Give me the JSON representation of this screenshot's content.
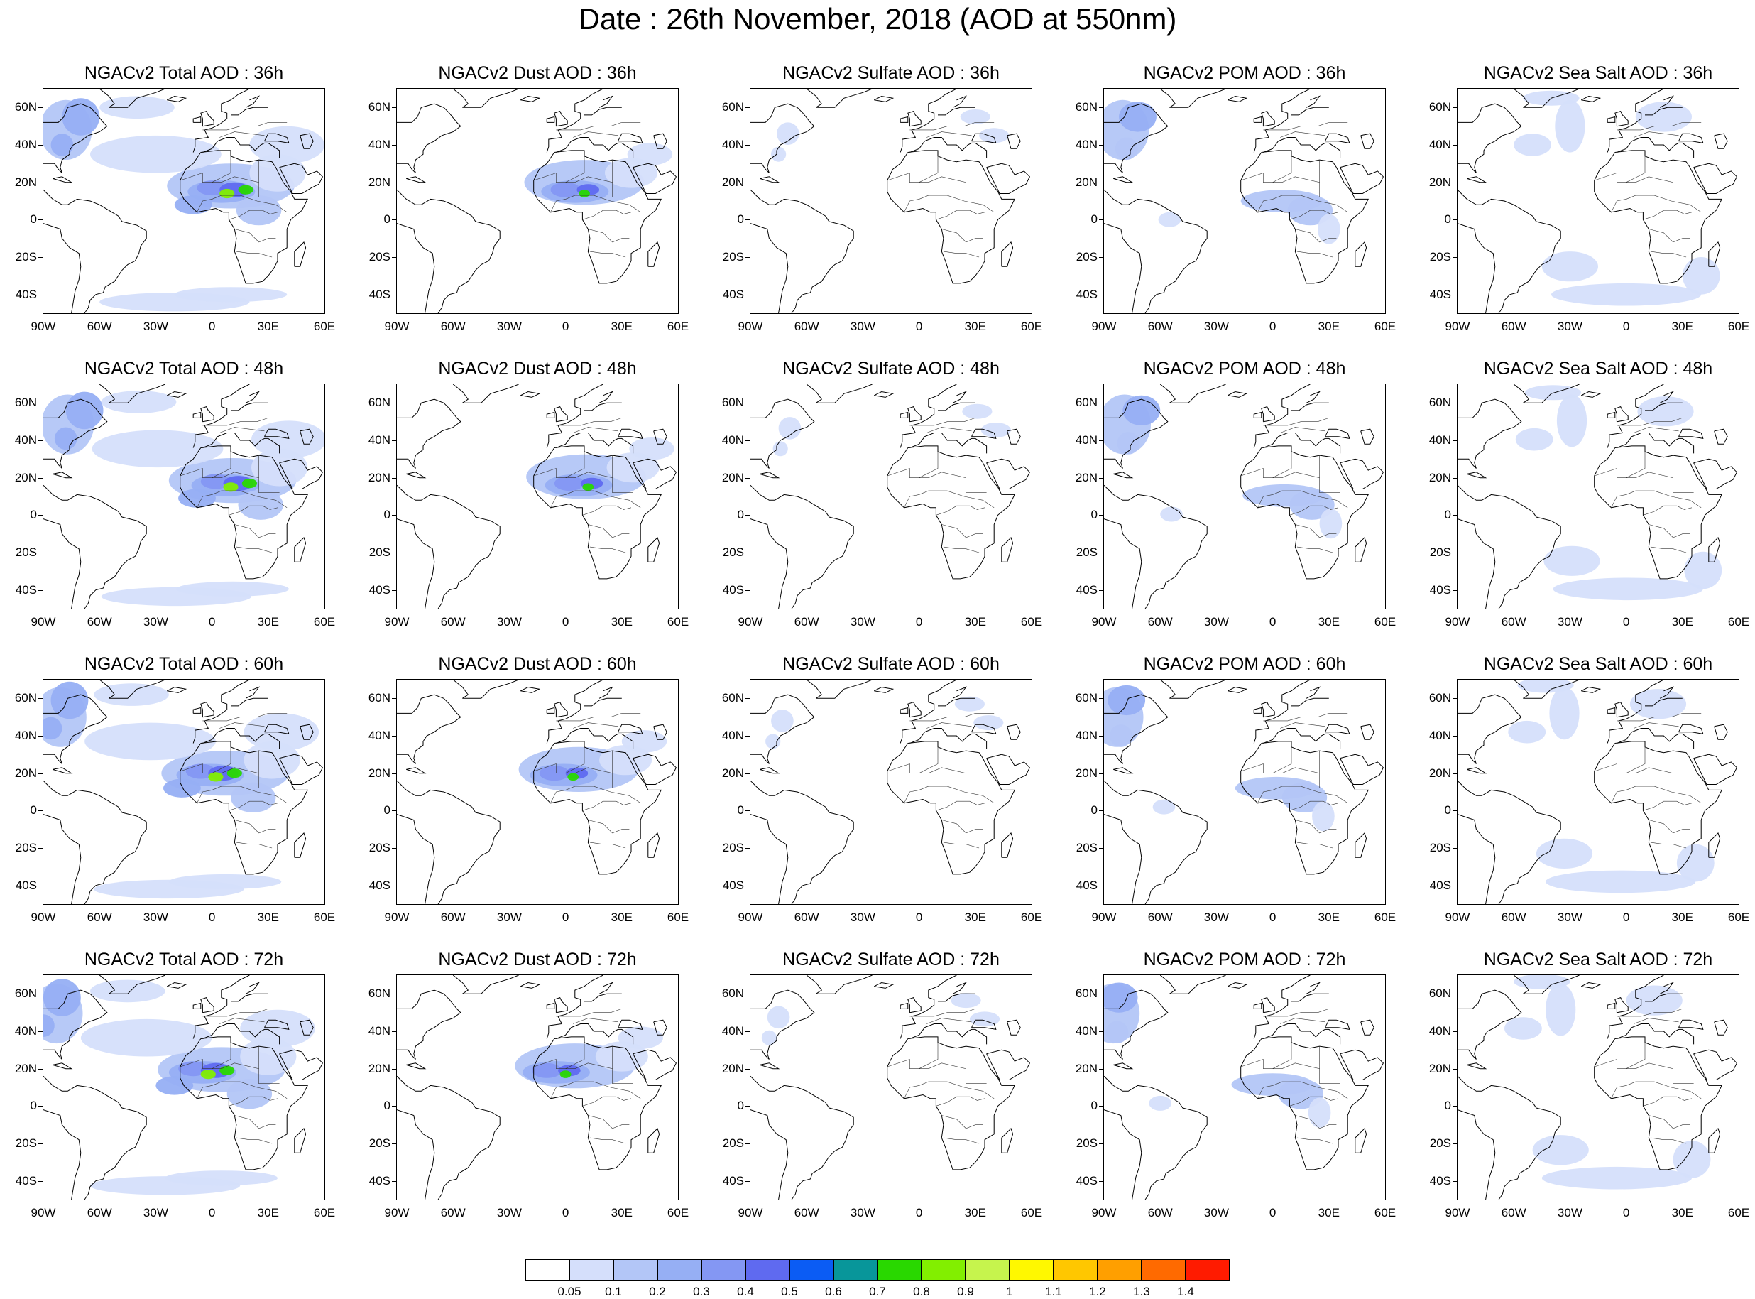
{
  "title": "Date : 26th November, 2018 (AOD at 550nm)",
  "rows": [
    {
      "hour": "36h",
      "panels": [
        {
          "title": "NGACv2 Total AOD : 36h",
          "species": "total"
        },
        {
          "title": "NGACv2 Dust AOD : 36h",
          "species": "dust"
        },
        {
          "title": "NGACv2 Sulfate AOD : 36h",
          "species": "sulfate"
        },
        {
          "title": "NGACv2 POM AOD : 36h",
          "species": "pom"
        },
        {
          "title": "NGACv2 Sea Salt AOD : 36h",
          "species": "seasalt"
        }
      ]
    },
    {
      "hour": "48h",
      "panels": [
        {
          "title": "NGACv2 Total AOD : 48h",
          "species": "total"
        },
        {
          "title": "NGACv2 Dust AOD : 48h",
          "species": "dust"
        },
        {
          "title": "NGACv2 Sulfate AOD : 48h",
          "species": "sulfate"
        },
        {
          "title": "NGACv2 POM AOD : 48h",
          "species": "pom"
        },
        {
          "title": "NGACv2 Sea Salt AOD : 48h",
          "species": "seasalt"
        }
      ]
    },
    {
      "hour": "60h",
      "panels": [
        {
          "title": "NGACv2 Total AOD : 60h",
          "species": "total"
        },
        {
          "title": "NGACv2 Dust AOD : 60h",
          "species": "dust"
        },
        {
          "title": "NGACv2 Sulfate AOD : 60h",
          "species": "sulfate"
        },
        {
          "title": "NGACv2 POM AOD : 60h",
          "species": "pom"
        },
        {
          "title": "NGACv2 Sea Salt AOD : 60h",
          "species": "seasalt"
        }
      ]
    },
    {
      "hour": "72h",
      "panels": [
        {
          "title": "NGACv2 Total AOD : 72h",
          "species": "total"
        },
        {
          "title": "NGACv2 Dust AOD : 72h",
          "species": "dust"
        },
        {
          "title": "NGACv2 Sulfate AOD : 72h",
          "species": "sulfate"
        },
        {
          "title": "NGACv2 POM AOD : 72h",
          "species": "pom"
        },
        {
          "title": "NGACv2 Sea Salt  AOD : 72h",
          "species": "seasalt"
        }
      ]
    }
  ],
  "axes": {
    "lon_labels": [
      "90W",
      "60W",
      "30W",
      "0",
      "30E",
      "60E"
    ],
    "lat_labels": [
      "60N",
      "40N",
      "20N",
      "0",
      "20S",
      "40S"
    ],
    "lon_range": [
      -90,
      60
    ],
    "lat_range": [
      -50,
      70
    ]
  },
  "colorbar": {
    "labels": [
      "0.05",
      "0.1",
      "0.2",
      "0.3",
      "0.4",
      "0.5",
      "0.6",
      "0.7",
      "0.8",
      "0.9",
      "1",
      "1.1",
      "1.2",
      "1.3",
      "1.4"
    ],
    "colors": [
      "#ffffff",
      "#d5dffb",
      "#b3c6f7",
      "#96aff4",
      "#8497f3",
      "#5f6af0",
      "#0b5cf4",
      "#08969a",
      "#29d800",
      "#82ef00",
      "#c6f44d",
      "#fff800",
      "#ffc700",
      "#ff9f00",
      "#ff6a00",
      "#ff1b00"
    ]
  }
}
